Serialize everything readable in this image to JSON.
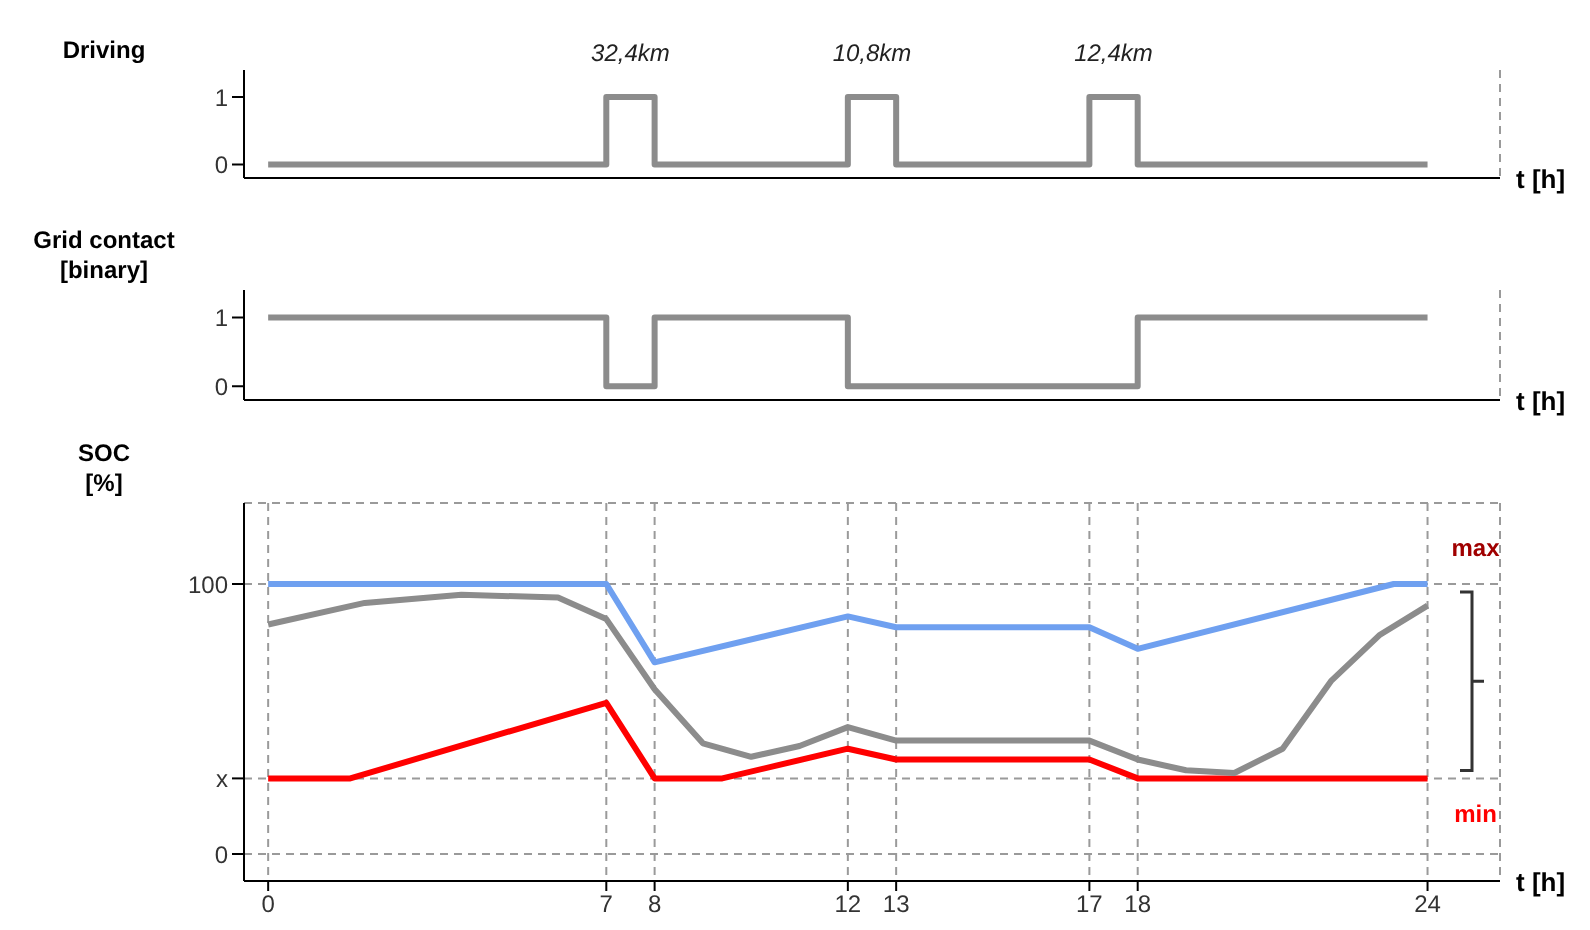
{
  "chart_data": [
    {
      "type": "step",
      "ylabel": "Driving",
      "xlabel": "t [h]",
      "x": [
        0,
        7,
        8,
        12,
        13,
        17,
        18,
        24
      ],
      "series": [
        {
          "color": "#8c8c8c",
          "values": [
            0,
            1,
            0,
            1,
            0,
            1,
            0,
            0
          ]
        }
      ],
      "xlim": [
        -0.5,
        25.5
      ],
      "xticks": [
        0,
        7,
        8,
        12,
        13,
        17,
        18,
        24
      ],
      "ylim": [
        -0.2,
        1.4
      ],
      "yticks": [
        0,
        1
      ],
      "grid": "x",
      "tick_labels": "y",
      "annotations": [
        {
          "text": "32,4km",
          "x": 7.5,
          "y": 1
        },
        {
          "text": "10,8km",
          "x": 12.5,
          "y": 1
        },
        {
          "text": "12,4km",
          "x": 17.5,
          "y": 1
        }
      ]
    },
    {
      "type": "step",
      "ylabel": "Grid contact\n[binary]",
      "xlabel": "t [h]",
      "x": [
        0,
        7,
        8,
        12,
        13,
        17,
        18,
        24
      ],
      "series": [
        {
          "color": "#8c8c8c",
          "values": [
            1,
            0,
            1,
            0,
            0,
            0,
            1,
            1
          ]
        }
      ],
      "xlim": [
        -0.5,
        25.5
      ],
      "xticks": [
        0,
        7,
        8,
        12,
        13,
        17,
        18,
        24
      ],
      "ylim": [
        -0.2,
        1.4
      ],
      "yticks": [
        0,
        1
      ],
      "grid": "x",
      "tick_labels": "y"
    },
    {
      "type": "line",
      "ylabel": "SOC\n[%]",
      "xlabel": "t [h]",
      "series": [
        {
          "color": "#6fa0f0",
          "x": [
            0,
            7,
            8,
            12,
            13,
            17,
            18,
            23.3,
            24
          ],
          "values": [
            100,
            100,
            71,
            88,
            84,
            84,
            76,
            100,
            100
          ]
        },
        {
          "color": "#ff0000",
          "x": [
            0,
            1.7,
            7,
            8,
            9.4,
            12,
            13,
            17,
            18,
            24
          ],
          "values": [
            28,
            28,
            56,
            28,
            28,
            39,
            35,
            35,
            28,
            28
          ]
        },
        {
          "color": "#8c8c8c",
          "x": [
            0,
            2,
            4,
            6,
            7,
            8,
            9,
            10,
            11,
            12,
            13,
            17,
            18,
            19,
            20,
            21,
            22,
            23,
            24
          ],
          "values": [
            85,
            93,
            96,
            95,
            87,
            61,
            41,
            36,
            40,
            47,
            42,
            42,
            35,
            31,
            30,
            39,
            64,
            81,
            92
          ]
        }
      ],
      "xlim": [
        -0.5,
        25.5
      ],
      "xticks": [
        0,
        7,
        8,
        12,
        13,
        17,
        18,
        24
      ],
      "ylim": [
        -10,
        130
      ],
      "yticks": [
        0,
        {
          "value": 28,
          "label": "x"
        },
        100
      ],
      "grid": true,
      "annotations": [
        {
          "text": "max",
          "x": 24,
          "y": 100
        },
        {
          "text": "min",
          "x": 24,
          "y": 28
        }
      ]
    }
  ]
}
